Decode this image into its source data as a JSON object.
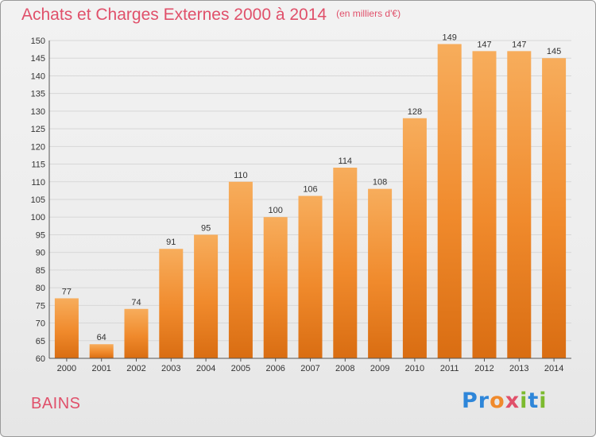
{
  "chart_data": {
    "type": "bar",
    "title": "Achats et Charges Externes 2000 à 2014",
    "unit": "(en milliers d'€)",
    "categories": [
      "2000",
      "2001",
      "2002",
      "2003",
      "2004",
      "2005",
      "2006",
      "2007",
      "2008",
      "2009",
      "2010",
      "2011",
      "2012",
      "2013",
      "2014"
    ],
    "values": [
      77,
      64,
      74,
      91,
      95,
      110,
      100,
      106,
      114,
      108,
      128,
      149,
      147,
      147,
      145
    ],
    "ylim": [
      60,
      150
    ],
    "yticks": [
      60,
      65,
      70,
      75,
      80,
      85,
      90,
      95,
      100,
      105,
      110,
      115,
      120,
      125,
      130,
      135,
      140,
      145,
      150
    ],
    "grid": true,
    "bar_color": "#f08a2c",
    "bar_color_light": "#f7ad5c",
    "bar_color_dark": "#d96d12"
  },
  "footer": {
    "place": "BAINS",
    "logo": {
      "letters": [
        "P",
        "r",
        "o",
        "x",
        "i",
        "t",
        "i"
      ],
      "colors": [
        "#2e86d9",
        "#2e86d9",
        "#f08a2c",
        "#e0506a",
        "#7cba2f",
        "#2e86d9",
        "#7cba2f"
      ]
    }
  },
  "colors": {
    "accent": "#e0506a"
  }
}
